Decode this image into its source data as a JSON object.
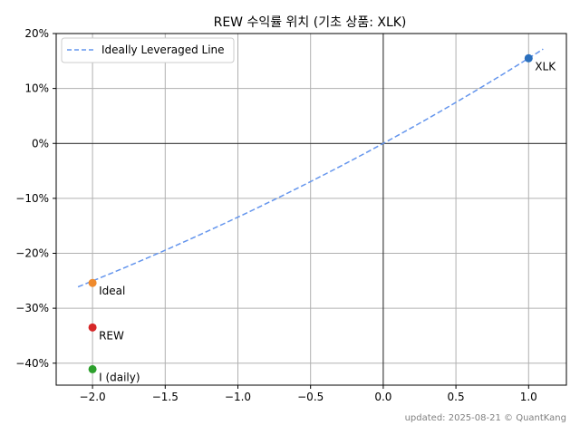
{
  "chart_data": {
    "type": "scatter",
    "title": "REW 수익률 위치 (기초 상품: XLK)",
    "xlabel": "",
    "ylabel": "",
    "xlim": [
      -2.25,
      1.26
    ],
    "ylim": [
      -0.44,
      0.2
    ],
    "x_ticks": [
      {
        "value": -2.0,
        "label": "−2.0"
      },
      {
        "value": -1.5,
        "label": "−1.5"
      },
      {
        "value": -1.0,
        "label": "−1.0"
      },
      {
        "value": -0.5,
        "label": "−0.5"
      },
      {
        "value": 0.0,
        "label": "0.0"
      },
      {
        "value": 0.5,
        "label": "0.5"
      },
      {
        "value": 1.0,
        "label": "1.0"
      }
    ],
    "y_ticks": [
      {
        "value": 0.2,
        "label": "20%"
      },
      {
        "value": 0.1,
        "label": "10%"
      },
      {
        "value": 0.0,
        "label": "0%"
      },
      {
        "value": -0.1,
        "label": "−10%"
      },
      {
        "value": -0.2,
        "label": "−20%"
      },
      {
        "value": -0.3,
        "label": "−30%"
      },
      {
        "value": -0.4,
        "label": "−40%"
      }
    ],
    "grid": true,
    "zero_lines": true,
    "legend": {
      "position": "top-left",
      "entries": [
        {
          "label": "Ideally Leveraged Line",
          "style": "dashed",
          "color": "#6495ed"
        }
      ]
    },
    "ideal_line": {
      "name": "Ideally Leveraged Line",
      "color": "#6495ed",
      "underlying_return": 0.155,
      "x_range": [
        -2.1,
        1.1
      ]
    },
    "points": [
      {
        "label": "XLK",
        "x": 1.0,
        "y": 0.155,
        "color": "#2a6fbd"
      },
      {
        "label": "Ideal",
        "x": -2.0,
        "y": -0.254,
        "color": "#ef8a2c"
      },
      {
        "label": "REW",
        "x": -2.0,
        "y": -0.335,
        "color": "#d62728"
      },
      {
        "label": "I (daily)",
        "x": -2.0,
        "y": -0.411,
        "color": "#2ca02c"
      }
    ],
    "footer": "updated: 2025-08-21 © QuantKang"
  }
}
